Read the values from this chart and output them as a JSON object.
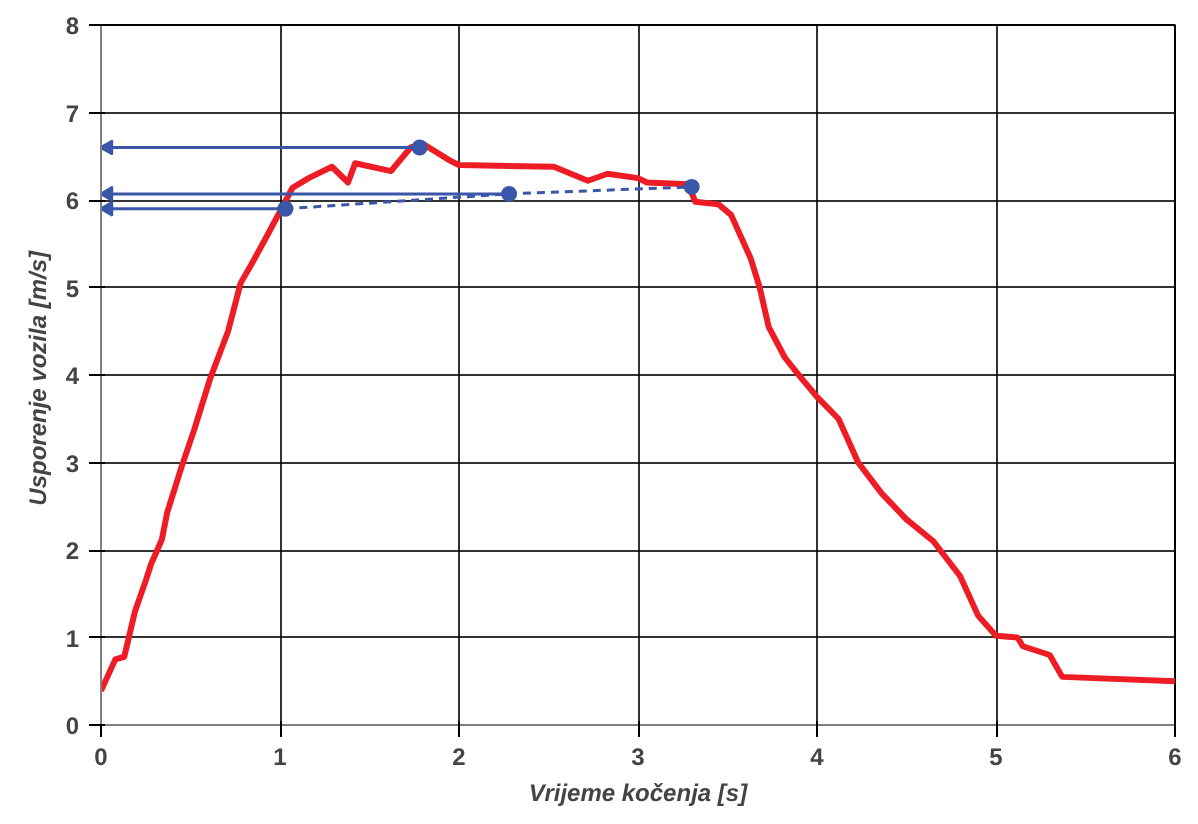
{
  "chart_data": {
    "type": "line",
    "xlabel": "Vrijeme kočenja [s]",
    "ylabel": "Usporenje vozila  [m/s]",
    "xlim": [
      0,
      6
    ],
    "ylim": [
      0,
      8
    ],
    "xticks": [
      0,
      1,
      2,
      3,
      4,
      5,
      6
    ],
    "yticks": [
      0,
      1,
      2,
      3,
      4,
      5,
      6,
      7,
      8
    ],
    "grid": true,
    "marker": "none",
    "line_style": "solid",
    "series": [
      {
        "color": "#ee1c25",
        "x": [
          0,
          0.08,
          0.13,
          0.19,
          0.25,
          0.28,
          0.34,
          0.37,
          0.45,
          0.52,
          0.61,
          0.71,
          0.78,
          0.85,
          0.93,
          1.0,
          1.07,
          1.16,
          1.29,
          1.38,
          1.42,
          1.62,
          1.73,
          1.8,
          1.95,
          2.0,
          2.53,
          2.72,
          2.83,
          3.0,
          3.05,
          3.28,
          3.32,
          3.45,
          3.52,
          3.63,
          3.68,
          3.73,
          3.82,
          3.91,
          4.0,
          4.12,
          4.23,
          4.36,
          4.5,
          4.65,
          4.8,
          4.9,
          5.0,
          5.12,
          5.15,
          5.3,
          5.37,
          6.0
        ],
        "values": [
          0.39,
          0.75,
          0.78,
          1.3,
          1.65,
          1.84,
          2.12,
          2.43,
          2.95,
          3.37,
          3.96,
          4.5,
          5.05,
          5.3,
          5.6,
          5.87,
          6.14,
          6.25,
          6.38,
          6.2,
          6.42,
          6.33,
          6.6,
          6.64,
          6.45,
          6.4,
          6.38,
          6.22,
          6.3,
          6.25,
          6.2,
          6.18,
          5.98,
          5.95,
          5.83,
          5.33,
          5.0,
          4.55,
          4.2,
          3.97,
          3.75,
          3.5,
          3.0,
          2.65,
          2.35,
          2.1,
          1.7,
          1.25,
          1.02,
          1.0,
          0.9,
          0.8,
          0.55,
          0.5
        ]
      },
      {
        "color": "#3a56a8",
        "type": "line",
        "line_style": "dashed",
        "marker": "circle",
        "x": [
          1.03,
          2.28,
          3.3
        ],
        "values": [
          5.9,
          6.07,
          6.15
        ]
      },
      {
        "color": "#3a56a8",
        "type": "line",
        "marker": "triangle",
        "x": [
          1.78,
          0.04
        ],
        "values": [
          6.6,
          6.6
        ]
      },
      {
        "color": "#3a56a8",
        "type": "line",
        "marker": "triangle",
        "x": [
          2.28,
          0.04
        ],
        "values": [
          6.07,
          6.07
        ]
      },
      {
        "color": "#3a56a8",
        "type": "line",
        "marker": "triangle",
        "x": [
          1.03,
          0.04
        ],
        "values": [
          5.9,
          5.9
        ]
      },
      {
        "color": "#3a56a8",
        "type": "scatter",
        "marker": "circle",
        "x": [
          1.78
        ],
        "values": [
          6.6
        ]
      }
    ]
  }
}
